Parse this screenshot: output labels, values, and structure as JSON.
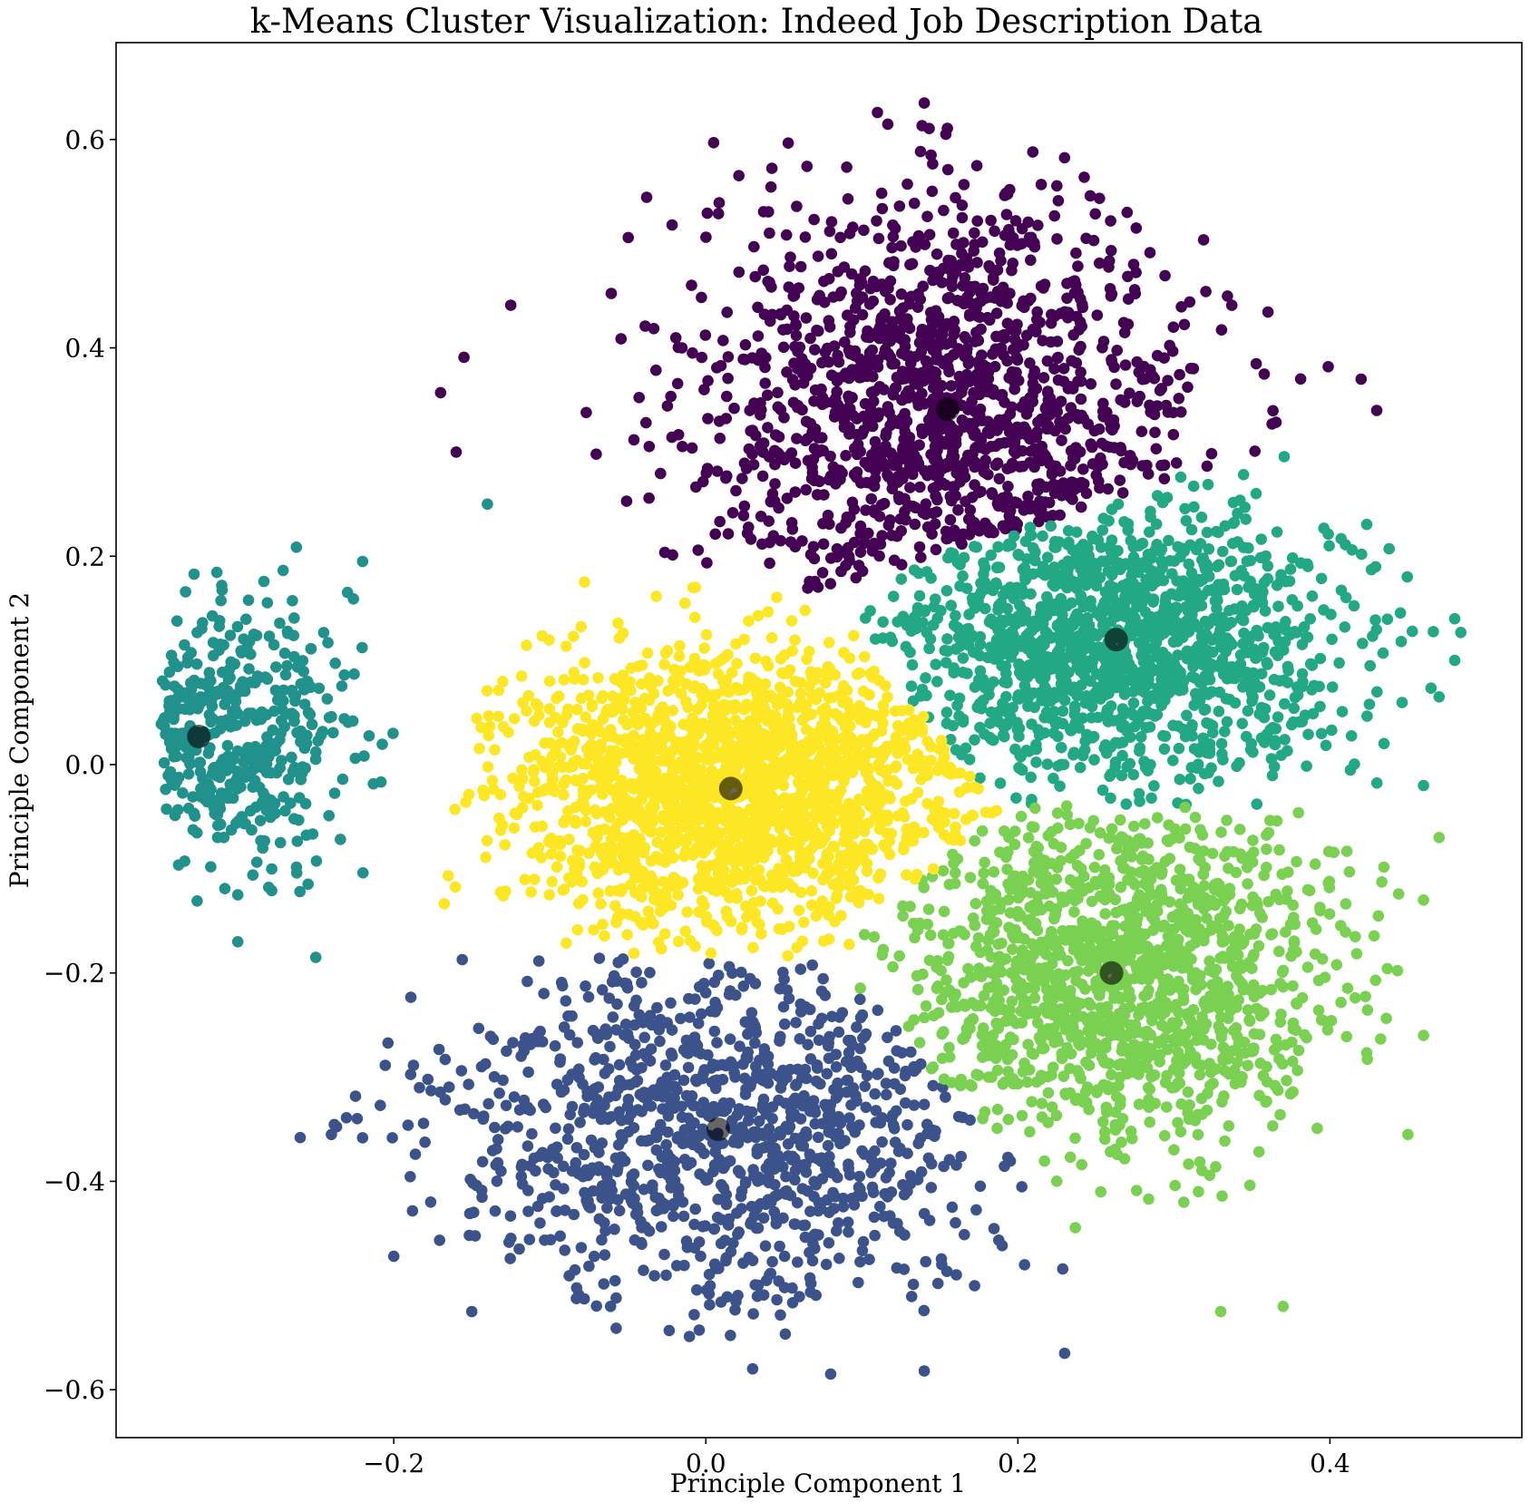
{
  "chart_data": {
    "type": "scatter",
    "title": "k-Means Cluster Visualization: Indeed Job Description Data",
    "xlabel": "Principle Component 1",
    "ylabel": "Principle Component 2",
    "xlim": [
      -0.378,
      0.523
    ],
    "ylim": [
      -0.646,
      0.693
    ],
    "x_ticks": [
      -0.2,
      0.0,
      0.2,
      0.4
    ],
    "x_tick_labels": [
      "−0.2",
      "0.0",
      "0.2",
      "0.4"
    ],
    "y_ticks": [
      -0.6,
      -0.4,
      -0.2,
      0.0,
      0.2,
      0.4,
      0.6
    ],
    "y_tick_labels": [
      "−0.6",
      "−0.4",
      "−0.2",
      "0.0",
      "0.2",
      "0.4",
      "0.6"
    ],
    "grid": false,
    "legend": false,
    "series": [
      {
        "cluster": 0,
        "color": "#440154",
        "center": [
          0.155,
          0.341
        ],
        "spread": [
          0.145,
          0.19
        ],
        "n_points": 1400,
        "outliers": [
          [
            0.14,
            0.635
          ],
          [
            0.11,
            0.626
          ],
          [
            0.005,
            0.597
          ],
          [
            -0.125,
            0.441
          ],
          [
            -0.155,
            0.391
          ],
          [
            -0.17,
            0.357
          ],
          [
            -0.16,
            0.3
          ],
          [
            0.42,
            0.37
          ],
          [
            0.43,
            0.34
          ],
          [
            0.27,
            0.53
          ]
        ]
      },
      {
        "cluster": 1,
        "color": "#3b528b",
        "center": [
          0.008,
          -0.35
        ],
        "spread": [
          0.17,
          0.16
        ],
        "n_points": 1100,
        "outliers": [
          [
            0.08,
            -0.585
          ],
          [
            0.14,
            -0.582
          ],
          [
            0.23,
            -0.565
          ],
          [
            -0.2,
            -0.472
          ],
          [
            -0.24,
            -0.355
          ],
          [
            -0.26,
            -0.358
          ],
          [
            -0.15,
            -0.525
          ],
          [
            0.03,
            -0.58
          ]
        ]
      },
      {
        "cluster": 2,
        "color": "#21918c",
        "center": [
          -0.325,
          0.027
        ],
        "spread": [
          0.09,
          0.11
        ],
        "n_points": 450,
        "outliers": [
          [
            -0.34,
            0.03
          ],
          [
            -0.3,
            -0.125
          ],
          [
            -0.3,
            -0.17
          ],
          [
            -0.25,
            -0.185
          ],
          [
            -0.14,
            0.25
          ],
          [
            -0.22,
            0.195
          ]
        ]
      },
      {
        "cluster": 3,
        "color": "#22a884",
        "center": [
          0.263,
          0.12
        ],
        "spread": [
          0.13,
          0.12
        ],
        "n_points": 1400,
        "outliers": [
          [
            0.48,
            0.14
          ],
          [
            0.48,
            0.1
          ],
          [
            0.47,
            0.065
          ],
          [
            0.46,
            -0.02
          ]
        ]
      },
      {
        "cluster": 4,
        "color": "#7ad151",
        "center": [
          0.26,
          -0.2
        ],
        "spread": [
          0.13,
          0.15
        ],
        "n_points": 1400,
        "outliers": [
          [
            0.46,
            -0.26
          ],
          [
            0.45,
            -0.355
          ],
          [
            0.46,
            -0.13
          ],
          [
            0.37,
            -0.52
          ],
          [
            0.33,
            -0.525
          ],
          [
            0.47,
            -0.07
          ]
        ]
      },
      {
        "cluster": 5,
        "color": "#fde725",
        "center": [
          0.016,
          -0.023
        ],
        "spread": [
          0.14,
          0.12
        ],
        "n_points": 1800,
        "outliers": []
      }
    ],
    "centroids": {
      "color": "#000000",
      "opacity": 0.6,
      "points": [
        [
          0.155,
          0.341
        ],
        [
          0.008,
          -0.35
        ],
        [
          -0.325,
          0.027
        ],
        [
          0.263,
          0.12
        ],
        [
          0.26,
          -0.2
        ],
        [
          0.016,
          -0.023
        ]
      ]
    }
  }
}
